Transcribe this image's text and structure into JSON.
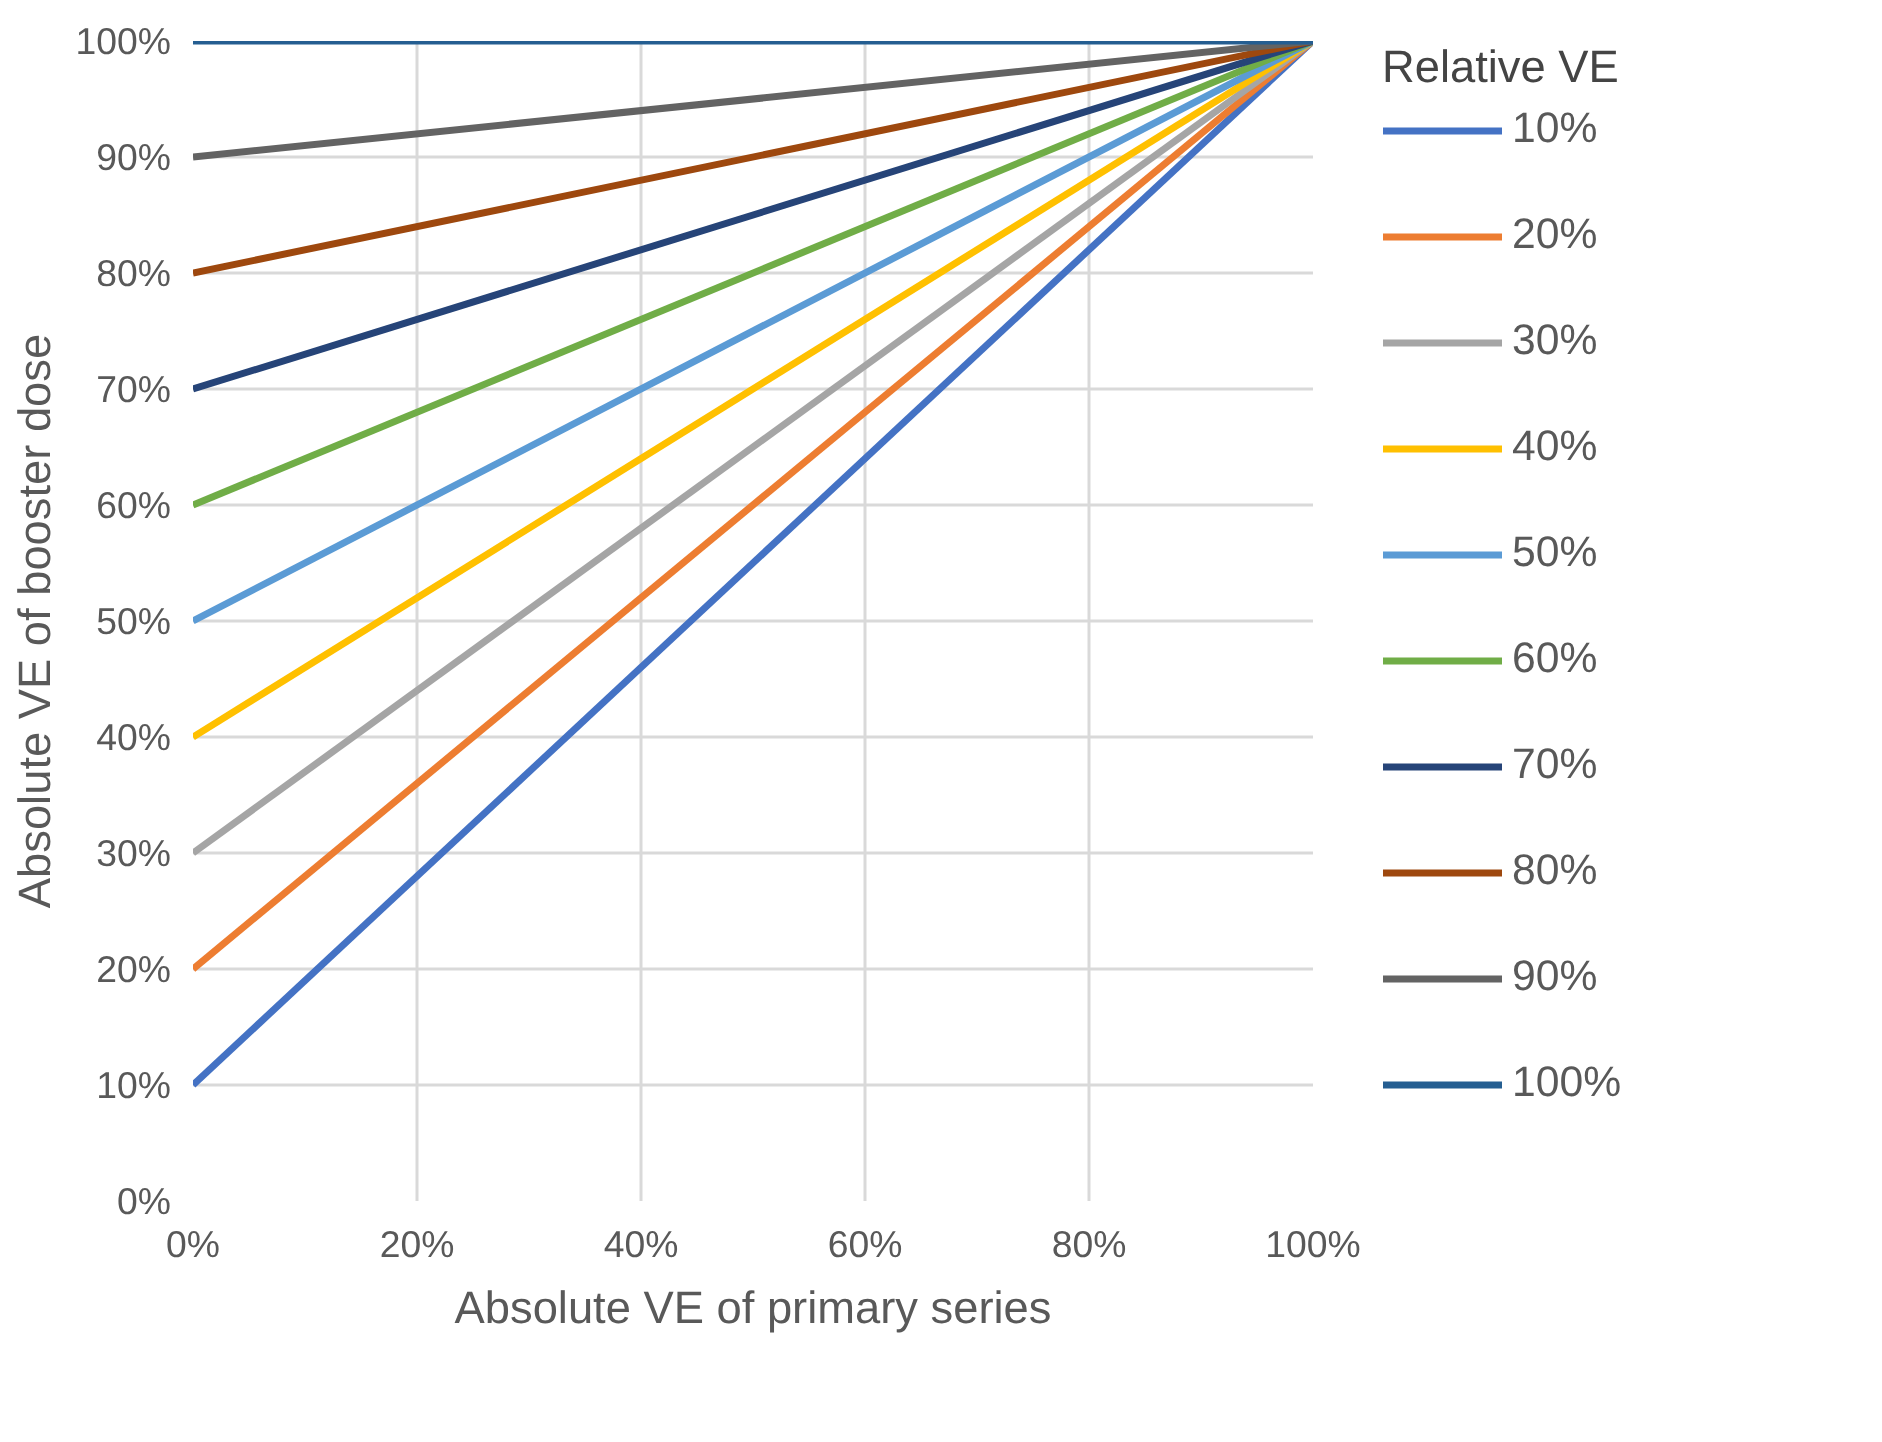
{
  "chart_data": {
    "type": "line",
    "xlabel": "Absolute VE of primary series",
    "ylabel": "Absolute VE of booster dose",
    "legend_title": "Relative VE",
    "x": [
      0,
      100
    ],
    "xlim": [
      0,
      100
    ],
    "ylim": [
      0,
      100
    ],
    "xticks": [
      {
        "value": 0,
        "label": "0%"
      },
      {
        "value": 20,
        "label": "20%"
      },
      {
        "value": 40,
        "label": "40%"
      },
      {
        "value": 60,
        "label": "60%"
      },
      {
        "value": 80,
        "label": "80%"
      },
      {
        "value": 100,
        "label": "100%"
      }
    ],
    "yticks": [
      {
        "value": 0,
        "label": "0%"
      },
      {
        "value": 10,
        "label": "10%"
      },
      {
        "value": 20,
        "label": "20%"
      },
      {
        "value": 30,
        "label": "30%"
      },
      {
        "value": 40,
        "label": "40%"
      },
      {
        "value": 50,
        "label": "50%"
      },
      {
        "value": 60,
        "label": "60%"
      },
      {
        "value": 70,
        "label": "70%"
      },
      {
        "value": 80,
        "label": "80%"
      },
      {
        "value": 90,
        "label": "90%"
      },
      {
        "value": 100,
        "label": "100%"
      }
    ],
    "grid": true,
    "legend": "right",
    "marker": "none",
    "line_style": "solid",
    "series": [
      {
        "name": "10%",
        "color": "#4472c4",
        "values": [
          10,
          100
        ]
      },
      {
        "name": "20%",
        "color": "#ed7d31",
        "values": [
          20,
          100
        ]
      },
      {
        "name": "30%",
        "color": "#a5a5a5",
        "values": [
          30,
          100
        ]
      },
      {
        "name": "40%",
        "color": "#ffc000",
        "values": [
          40,
          100
        ]
      },
      {
        "name": "50%",
        "color": "#5b9bd5",
        "values": [
          50,
          100
        ]
      },
      {
        "name": "60%",
        "color": "#70ad47",
        "values": [
          60,
          100
        ]
      },
      {
        "name": "70%",
        "color": "#264478",
        "values": [
          70,
          100
        ]
      },
      {
        "name": "80%",
        "color": "#9e480e",
        "values": [
          80,
          100
        ]
      },
      {
        "name": "90%",
        "color": "#636363",
        "values": [
          90,
          100
        ]
      },
      {
        "name": "100%",
        "color": "#255e91",
        "values": [
          100,
          100
        ]
      }
    ]
  }
}
